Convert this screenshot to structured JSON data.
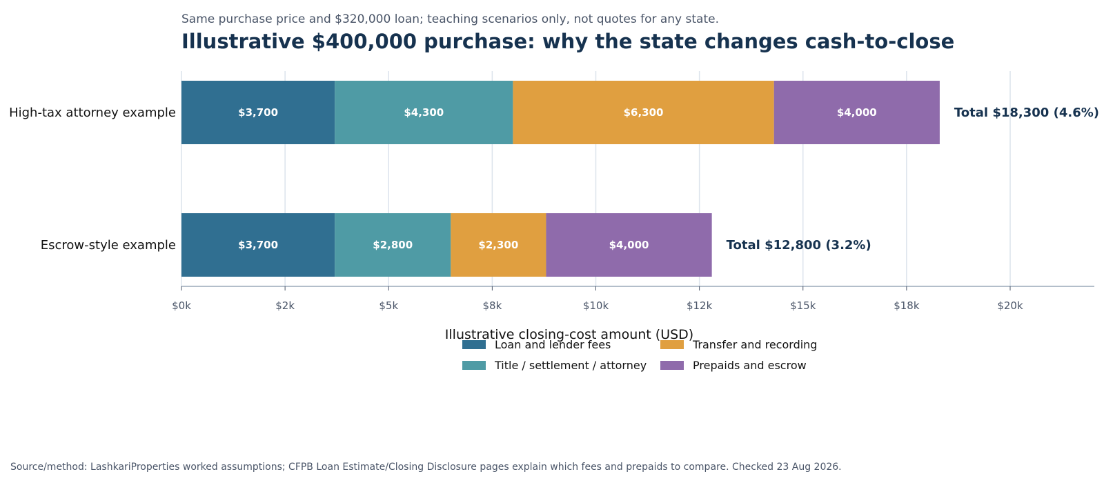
{
  "chart_data": {
    "type": "bar",
    "orientation": "horizontal",
    "stacked": true,
    "subtitle": "Same purchase price and $320,000 loan; teaching scenarios only, not quotes for any state.",
    "title": "Illustrative $400,000 purchase: why the state changes cash-to-close",
    "xlabel": "Illustrative closing-cost amount (USD)",
    "ylabel": "",
    "xlim": [
      0,
      22000
    ],
    "grid": true,
    "legend_position": "bottom-center",
    "categories": [
      "High-tax attorney example",
      "Escrow-style example"
    ],
    "series": [
      {
        "name": "Loan and lender fees",
        "color": "#306f91",
        "values": [
          3700,
          3700
        ],
        "labels": [
          "$3,700",
          "$3,700"
        ]
      },
      {
        "name": "Title / settlement / attorney",
        "color": "#4f9ba5",
        "values": [
          4300,
          2800
        ],
        "labels": [
          "$4,300",
          "$2,800"
        ]
      },
      {
        "name": "Transfer and recording",
        "color": "#e09f40",
        "values": [
          6300,
          2300
        ],
        "labels": [
          "$6,300",
          "$2,300"
        ]
      },
      {
        "name": "Prepaids and escrow",
        "color": "#8f6bab",
        "values": [
          4000,
          4000
        ],
        "labels": [
          "$4,000",
          "$4,000"
        ]
      }
    ],
    "totals": [
      "Total $18,300 (4.6%)",
      "Total $12,800 (3.2%)"
    ],
    "x_ticks": [
      {
        "value": 0,
        "label": "$0k"
      },
      {
        "value": 2500,
        "label": "$2k"
      },
      {
        "value": 5000,
        "label": "$5k"
      },
      {
        "value": 7500,
        "label": "$8k"
      },
      {
        "value": 10000,
        "label": "$10k"
      },
      {
        "value": 12500,
        "label": "$12k"
      },
      {
        "value": 15000,
        "label": "$15k"
      },
      {
        "value": 17500,
        "label": "$18k"
      },
      {
        "value": 20000,
        "label": "$20k"
      }
    ]
  },
  "footer": {
    "source": "Source/method: LashkariProperties worked assumptions; CFPB Loan Estimate/Closing Disclosure pages explain which fees and prepaids to compare. Checked 23 Aug 2026."
  }
}
